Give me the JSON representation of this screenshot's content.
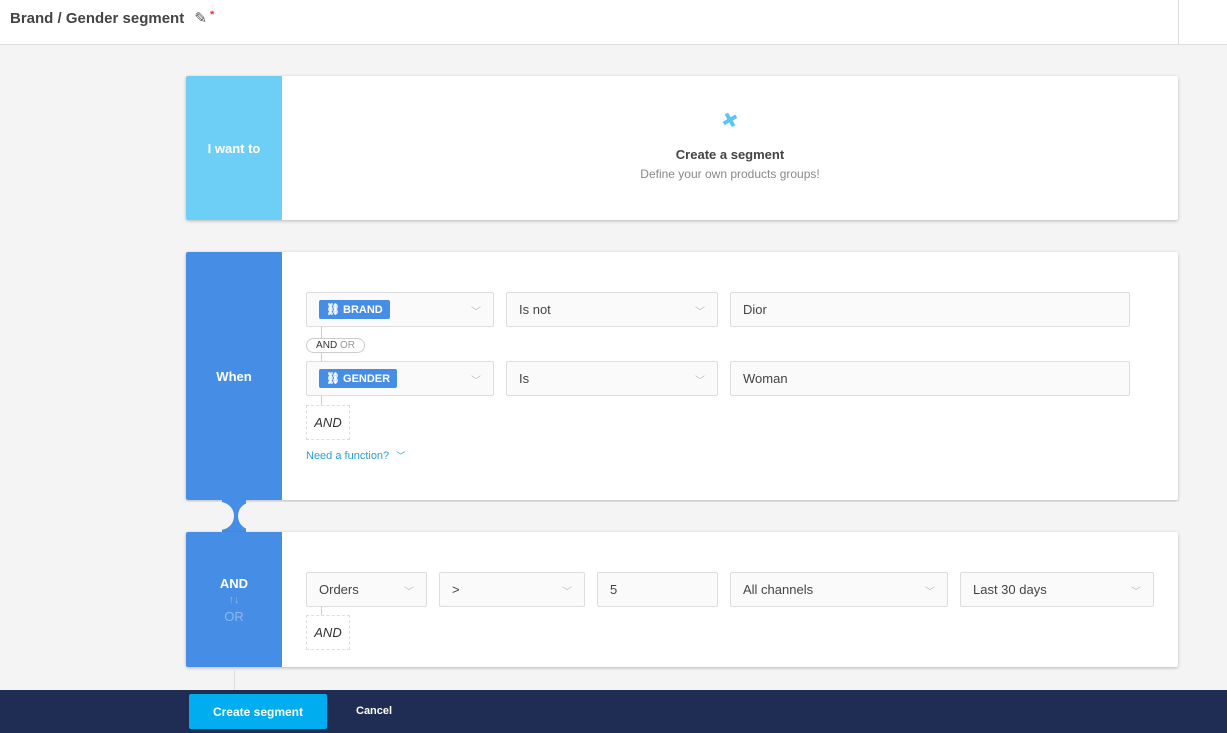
{
  "header": {
    "title": "Brand / Gender segment",
    "required_mark": "*"
  },
  "intent": {
    "label": "I want to",
    "title": "Create a segment",
    "subtitle": "Define your own products groups!"
  },
  "when": {
    "label": "When",
    "rows": [
      {
        "field": "BRAND",
        "operator": "Is not",
        "value": "Dior"
      },
      {
        "field": "GENDER",
        "operator": "Is",
        "value": "Woman"
      }
    ],
    "pill_and": "AND",
    "pill_or": "OR",
    "add_and": "AND",
    "function_link": "Need a function?"
  },
  "condition2": {
    "and_label": "AND",
    "swap_icon": "↑↓",
    "or_label": "OR",
    "metric": "Orders",
    "operator": ">",
    "value": "5",
    "channel": "All channels",
    "period": "Last 30 days",
    "add_and": "AND"
  },
  "footer": {
    "create": "Create segment",
    "cancel": "Cancel"
  },
  "colors": {
    "intent": "#6dcff6",
    "when": "#468ee5",
    "footer": "#1f2d55",
    "primary": "#00aeef"
  }
}
